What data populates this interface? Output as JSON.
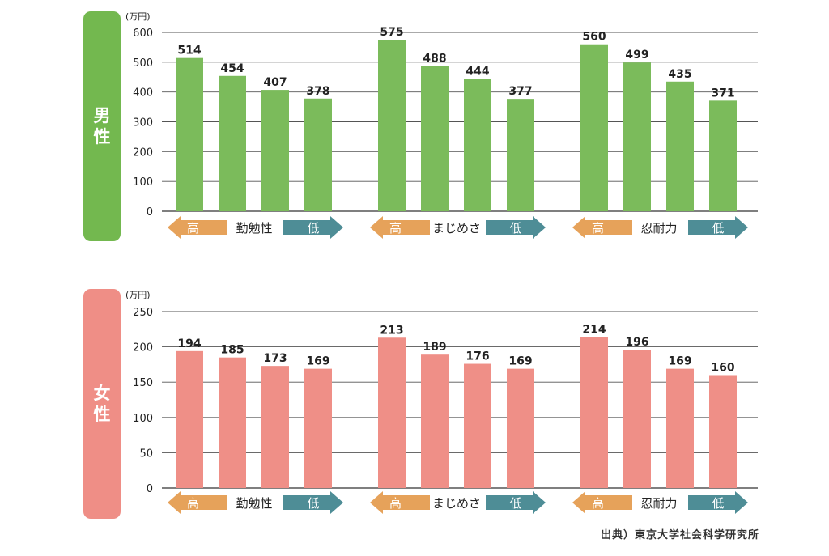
{
  "source": "出典）東京大学社会科学研究所",
  "legend": {
    "high": "高",
    "low": "低"
  },
  "colors": {
    "male": "#7bbb5b",
    "male_panel": "#73b84f",
    "female": "#ef8f87",
    "female_panel": "#ef8e86",
    "arrow_high": "#e6a25a",
    "arrow_low": "#4e8d96",
    "grid": "#555555",
    "text": "#222222"
  },
  "chart_data": [
    {
      "type": "bar",
      "panel_label": "男性",
      "unit": "(万円)",
      "ylim": [
        0,
        600
      ],
      "yticks": [
        0,
        100,
        200,
        300,
        400,
        500,
        600
      ],
      "groups": [
        {
          "name": "勤勉性",
          "values": [
            514,
            454,
            407,
            378
          ]
        },
        {
          "name": "まじめさ",
          "values": [
            575,
            488,
            444,
            377
          ]
        },
        {
          "name": "忍耐力",
          "values": [
            560,
            499,
            435,
            371
          ]
        }
      ]
    },
    {
      "type": "bar",
      "panel_label": "女性",
      "unit": "(万円)",
      "ylim": [
        0,
        250
      ],
      "yticks": [
        0,
        50,
        100,
        150,
        200,
        250
      ],
      "groups": [
        {
          "name": "勤勉性",
          "values": [
            194,
            185,
            173,
            169
          ]
        },
        {
          "name": "まじめさ",
          "values": [
            213,
            189,
            176,
            169
          ]
        },
        {
          "name": "忍耐力",
          "values": [
            214,
            196,
            169,
            160
          ]
        }
      ]
    }
  ]
}
